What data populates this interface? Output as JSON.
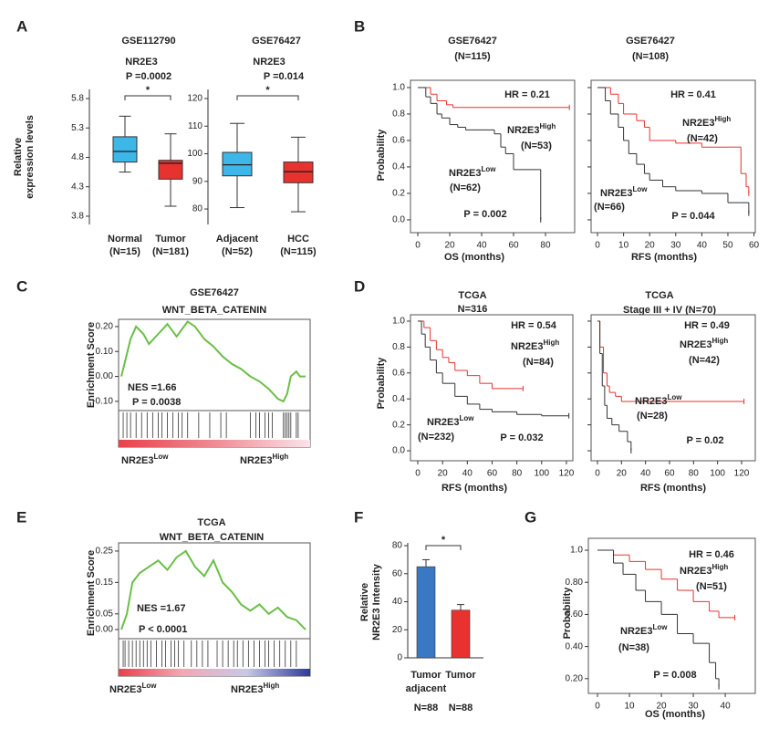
{
  "chart_data": [
    {
      "type": "box",
      "panel": "A",
      "title": "GSE112790",
      "subtitle": "NR2E3",
      "p_value": "P =0.0002",
      "significance": "*",
      "ylabel": [
        "Relative",
        "expression levels"
      ],
      "categories": [
        "Normal",
        "Tumor"
      ],
      "category_counts": [
        "(N=15)",
        "(N=181)"
      ],
      "boxes": [
        {
          "min": 4.55,
          "q1": 4.72,
          "median": 4.9,
          "q3": 5.15,
          "max": 5.5
        },
        {
          "min": 3.97,
          "q1": 4.43,
          "median": 4.7,
          "q3": 4.75,
          "max": 5.2
        }
      ],
      "colors": [
        "#3db6e8",
        "#e8322f"
      ],
      "ylim": [
        3.66,
        5.955
      ],
      "yticks": [
        3.8,
        4.3,
        4.8,
        5.3,
        5.8
      ]
    },
    {
      "type": "box",
      "title": "GSE76427",
      "subtitle": "NR2E3",
      "p_value": "P =0.014",
      "significance": "*",
      "categories": [
        "Adjacent",
        "HCC"
      ],
      "category_counts": [
        "(N=52)",
        "(N=115)"
      ],
      "boxes": [
        {
          "min": 80.5,
          "q1": 92,
          "median": 96,
          "q3": 100.5,
          "max": 111
        },
        {
          "min": 79,
          "q1": 89.5,
          "median": 93.5,
          "q3": 97,
          "max": 106
        }
      ],
      "colors": [
        "#3db6e8",
        "#e8322f"
      ],
      "ylim": [
        74.4,
        123.3
      ],
      "yticks": [
        80,
        90,
        100,
        110,
        120
      ]
    },
    {
      "type": "km",
      "panel": "B",
      "title": "GSE76427",
      "subtitle": "(N=115)",
      "hr": "HR = 0.21",
      "p_value": "P = 0.002",
      "xlabel": "OS (months)",
      "ylabel": "Probability",
      "xlim": [
        -4.6,
        98.3
      ],
      "ylim": [
        -0.097,
        1.055
      ],
      "xticks": [
        0,
        20,
        40,
        60,
        80
      ],
      "yticks": [
        {
          "value": 0,
          "label": "0.0"
        },
        0.2,
        0.4,
        0.6,
        0.8,
        {
          "value": 1,
          "label": "1.0"
        }
      ],
      "series": [
        {
          "name": {
            "base": "NR2E3",
            "sup": "High"
          },
          "n": "(N=53)",
          "color": "#e8322f",
          "x": [
            0,
            8,
            12,
            18,
            22,
            95
          ],
          "values": [
            1,
            0.95,
            0.9,
            0.87,
            0.85,
            0.85
          ]
        },
        {
          "name": {
            "base": "NR2E3",
            "sup": "Low"
          },
          "n": "(N=62)",
          "color": "#333333",
          "x": [
            0,
            5,
            8,
            12,
            15,
            20,
            25,
            30,
            48,
            52,
            55,
            60,
            75,
            77
          ],
          "values": [
            1,
            0.93,
            0.88,
            0.8,
            0.77,
            0.72,
            0.7,
            0.68,
            0.65,
            0.55,
            0.5,
            0.38,
            0.38,
            0
          ]
        }
      ]
    },
    {
      "type": "km",
      "title": "GSE76427",
      "subtitle": "(N=108)",
      "hr": "HR = 0.41",
      "p_value": "P = 0.044",
      "xlabel": "RFS (months)",
      "ytick_labels": false,
      "xlim": [
        -2.45,
        60.5
      ],
      "ylim": [
        -0.097,
        1.055
      ],
      "xticks": [
        0,
        10,
        20,
        30,
        40,
        50,
        60
      ],
      "yticks": [
        0,
        0.2,
        0.4,
        0.6,
        0.8,
        1
      ],
      "series": [
        {
          "name": {
            "base": "NR2E3",
            "sup": "High"
          },
          "n": "(N=42)",
          "color": "#e8322f",
          "x": [
            0,
            5,
            8,
            10,
            15,
            18,
            20,
            25,
            30,
            40,
            50,
            55,
            57,
            58
          ],
          "values": [
            1,
            0.95,
            0.88,
            0.8,
            0.75,
            0.7,
            0.6,
            0.6,
            0.58,
            0.55,
            0.55,
            0.35,
            0.25,
            0.2
          ]
        },
        {
          "name": {
            "base": "NR2E3",
            "sup": "Low"
          },
          "n": "(N=66)",
          "color": "#333333",
          "x": [
            0,
            3,
            5,
            8,
            10,
            12,
            15,
            18,
            20,
            25,
            30,
            40,
            50,
            58
          ],
          "values": [
            1,
            0.9,
            0.8,
            0.7,
            0.6,
            0.5,
            0.42,
            0.35,
            0.3,
            0.25,
            0.22,
            0.2,
            0.13,
            0.05
          ]
        }
      ]
    },
    {
      "type": "gsea",
      "panel": "C",
      "title": "GSE76427",
      "subtitle": "WNT_BETA_CATENIN",
      "nes": "NES =1.66",
      "p_value": "P = 0.0038",
      "ylabel": "Enrichment Score",
      "low_label": {
        "base": "NR2E3",
        "sup": "Low"
      },
      "high_label": {
        "base": "NR2E3",
        "sup": "High"
      },
      "xlim": [
        -1.5,
        102.5
      ],
      "ylim": [
        -0.137,
        0.229
      ],
      "yticks": [
        {
          "value": -0.1,
          "label": "-0.10"
        },
        {
          "value": 0,
          "label": "0.00"
        },
        {
          "value": 0.1,
          "label": "0.10"
        },
        {
          "value": 0.2,
          "label": "0.20"
        }
      ],
      "x": [
        0,
        5,
        8,
        12,
        15,
        20,
        25,
        30,
        33,
        36,
        40,
        45,
        50,
        55,
        60,
        65,
        70,
        75,
        80,
        85,
        88,
        90,
        92,
        95,
        97,
        100
      ],
      "values": [
        0,
        0.15,
        0.2,
        0.17,
        0.13,
        0.17,
        0.21,
        0.16,
        0.19,
        0.22,
        0.2,
        0.15,
        0.12,
        0.08,
        0.05,
        0.03,
        0,
        -0.02,
        -0.05,
        -0.09,
        -0.1,
        -0.07,
        0,
        0.02,
        0,
        0
      ],
      "hits": [
        1,
        3,
        5,
        8,
        11,
        14,
        17,
        20,
        22,
        25,
        28,
        31,
        33,
        36,
        42,
        48,
        54,
        57,
        70,
        73,
        75,
        78,
        80,
        82,
        88,
        89,
        90,
        91,
        92,
        95,
        96
      ],
      "color": "#6abf45",
      "gradient": [
        "#e8414a",
        "#f08a93",
        "#fbe3ea"
      ]
    },
    {
      "type": "km",
      "panel": "D",
      "title": "TCGA",
      "subtitle": "N=316",
      "hr": "HR = 0.54",
      "p_value": "P = 0.032",
      "xlabel": "RFS (months)",
      "ylabel": "Probability",
      "xlim": [
        -5.9,
        125.2
      ],
      "ylim": [
        -0.077,
        1.049
      ],
      "xticks": [
        0,
        20,
        40,
        60,
        80,
        100,
        120
      ],
      "yticks": [
        {
          "value": 0,
          "label": "0.0"
        },
        0.2,
        0.4,
        0.6,
        0.8,
        {
          "value": 1,
          "label": "1.0"
        }
      ],
      "series": [
        {
          "name": {
            "base": "NR2E3",
            "sup": "High"
          },
          "n": "(N=84)",
          "color": "#e8322f",
          "x": [
            0,
            5,
            10,
            15,
            20,
            25,
            30,
            40,
            50,
            60,
            70,
            85
          ],
          "values": [
            1,
            0.95,
            0.85,
            0.78,
            0.72,
            0.68,
            0.62,
            0.58,
            0.52,
            0.48,
            0.48,
            0.48
          ]
        },
        {
          "name": {
            "base": "NR2E3",
            "sup": "Low"
          },
          "n": "(N=232)",
          "color": "#333333",
          "x": [
            0,
            3,
            6,
            10,
            15,
            20,
            30,
            40,
            50,
            60,
            80,
            100,
            122
          ],
          "values": [
            1,
            0.9,
            0.8,
            0.7,
            0.6,
            0.52,
            0.42,
            0.36,
            0.32,
            0.3,
            0.28,
            0.27,
            0.27
          ]
        }
      ]
    },
    {
      "type": "km",
      "title": "TCGA",
      "subtitle": "Stage III + IV (N=70)",
      "hr": "HR = 0.49",
      "p_value": "P = 0.02",
      "xlabel": "RFS (months)",
      "ytick_labels": false,
      "xlim": [
        -5.3,
        131.4
      ],
      "ylim": [
        -0.077,
        1.049
      ],
      "xticks": [
        0,
        20,
        40,
        60,
        80,
        100,
        120
      ],
      "yticks": [
        0,
        0.2,
        0.4,
        0.6,
        0.8,
        1
      ],
      "series": [
        {
          "name": {
            "base": "NR2E3",
            "sup": "High"
          },
          "n": "(N=42)",
          "color": "#e8322f",
          "x": [
            0,
            2,
            5,
            8,
            10,
            15,
            20,
            122
          ],
          "values": [
            1,
            0.8,
            0.6,
            0.5,
            0.45,
            0.42,
            0.38,
            0.38
          ]
        },
        {
          "name": {
            "base": "NR2E3",
            "sup": "Low"
          },
          "n": "(N=28)",
          "color": "#333333",
          "x": [
            0,
            2,
            4,
            6,
            8,
            12,
            18,
            25,
            28
          ],
          "values": [
            1,
            0.75,
            0.5,
            0.35,
            0.25,
            0.2,
            0.15,
            0.07,
            0
          ]
        }
      ]
    },
    {
      "type": "gsea",
      "panel": "E",
      "title": "TCGA",
      "subtitle": "WNT_BETA_CATENIN",
      "nes": "NES =1.67",
      "p_value": "P < 0.0001",
      "ylabel": "Enrichment Score",
      "low_label": {
        "base": "NR2E3",
        "sup": "Low"
      },
      "high_label": {
        "base": "NR2E3",
        "sup": "High"
      },
      "xlim": [
        -1.5,
        102.5
      ],
      "ylim": [
        -0.029,
        0.276
      ],
      "yticks": [
        {
          "value": 0,
          "label": "0.00"
        },
        0.05,
        0.15,
        0.25
      ],
      "x": [
        0,
        3,
        6,
        10,
        15,
        20,
        25,
        30,
        35,
        40,
        45,
        50,
        55,
        60,
        65,
        70,
        75,
        80,
        85,
        90,
        95,
        100
      ],
      "values": [
        0,
        0.05,
        0.15,
        0.18,
        0.2,
        0.22,
        0.19,
        0.23,
        0.25,
        0.2,
        0.17,
        0.22,
        0.15,
        0.12,
        0.08,
        0.06,
        0.08,
        0.05,
        0.07,
        0.04,
        0.03,
        0
      ],
      "hits": [
        1,
        2,
        4,
        6,
        8,
        10,
        12,
        14,
        16,
        19,
        22,
        24,
        27,
        29,
        31,
        34,
        38,
        41,
        44,
        47,
        52,
        55,
        58,
        61,
        63,
        66,
        69,
        72,
        75,
        78,
        80,
        83,
        86,
        89,
        92,
        95
      ],
      "color": "#6abf45",
      "gradient": [
        "#e8414a",
        "#f4a7b5",
        "#c8c8e8",
        "#2e3a99"
      ]
    },
    {
      "type": "bar",
      "panel": "F",
      "ylabel": [
        "Relative",
        "NR2E3 Intensity"
      ],
      "significance": "*",
      "categories": [
        [
          "Tumor",
          "adjacent"
        ],
        [
          "Tumor"
        ]
      ],
      "category_counts": [
        "N=88",
        "N=88"
      ],
      "values": [
        65,
        34
      ],
      "errors": [
        5,
        4
      ],
      "colors": [
        "#3a78c3",
        "#e8322f"
      ],
      "ylim": [
        0,
        82
      ],
      "yticks": [
        0,
        20,
        40,
        60,
        80
      ]
    },
    {
      "type": "km",
      "panel": "G",
      "hr": "HR = 0.46",
      "p_value": "P = 0.008",
      "xlabel": "OS (months)",
      "ylabel": "Probability",
      "xlim": [
        -2.86,
        49.4
      ],
      "ylim": [
        0.108,
        1.074
      ],
      "xticks": [
        0,
        10,
        20,
        30,
        40
      ],
      "yticks": [
        {
          "value": 0.2,
          "label": "0.20"
        },
        {
          "value": 0.4,
          "label": "0.40"
        },
        {
          "value": 0.6,
          "label": "0.60"
        },
        {
          "value": 0.8,
          "label": "0.80"
        },
        {
          "value": 1,
          "label": "1.0"
        }
      ],
      "series": [
        {
          "name": {
            "base": "NR2E3",
            "sup": "High"
          },
          "n": "(N=51)",
          "color": "#e8322f",
          "x": [
            0,
            5,
            10,
            15,
            20,
            25,
            30,
            35,
            38,
            43
          ],
          "values": [
            1,
            0.97,
            0.93,
            0.88,
            0.82,
            0.75,
            0.68,
            0.62,
            0.58,
            0.58
          ]
        },
        {
          "name": {
            "base": "NR2E3",
            "sup": "Low"
          },
          "n": "(N=38)",
          "color": "#333333",
          "x": [
            0,
            5,
            8,
            12,
            15,
            20,
            25,
            30,
            35,
            37,
            38
          ],
          "values": [
            1,
            0.92,
            0.85,
            0.75,
            0.68,
            0.6,
            0.48,
            0.42,
            0.3,
            0.2,
            0.15
          ]
        }
      ]
    }
  ]
}
